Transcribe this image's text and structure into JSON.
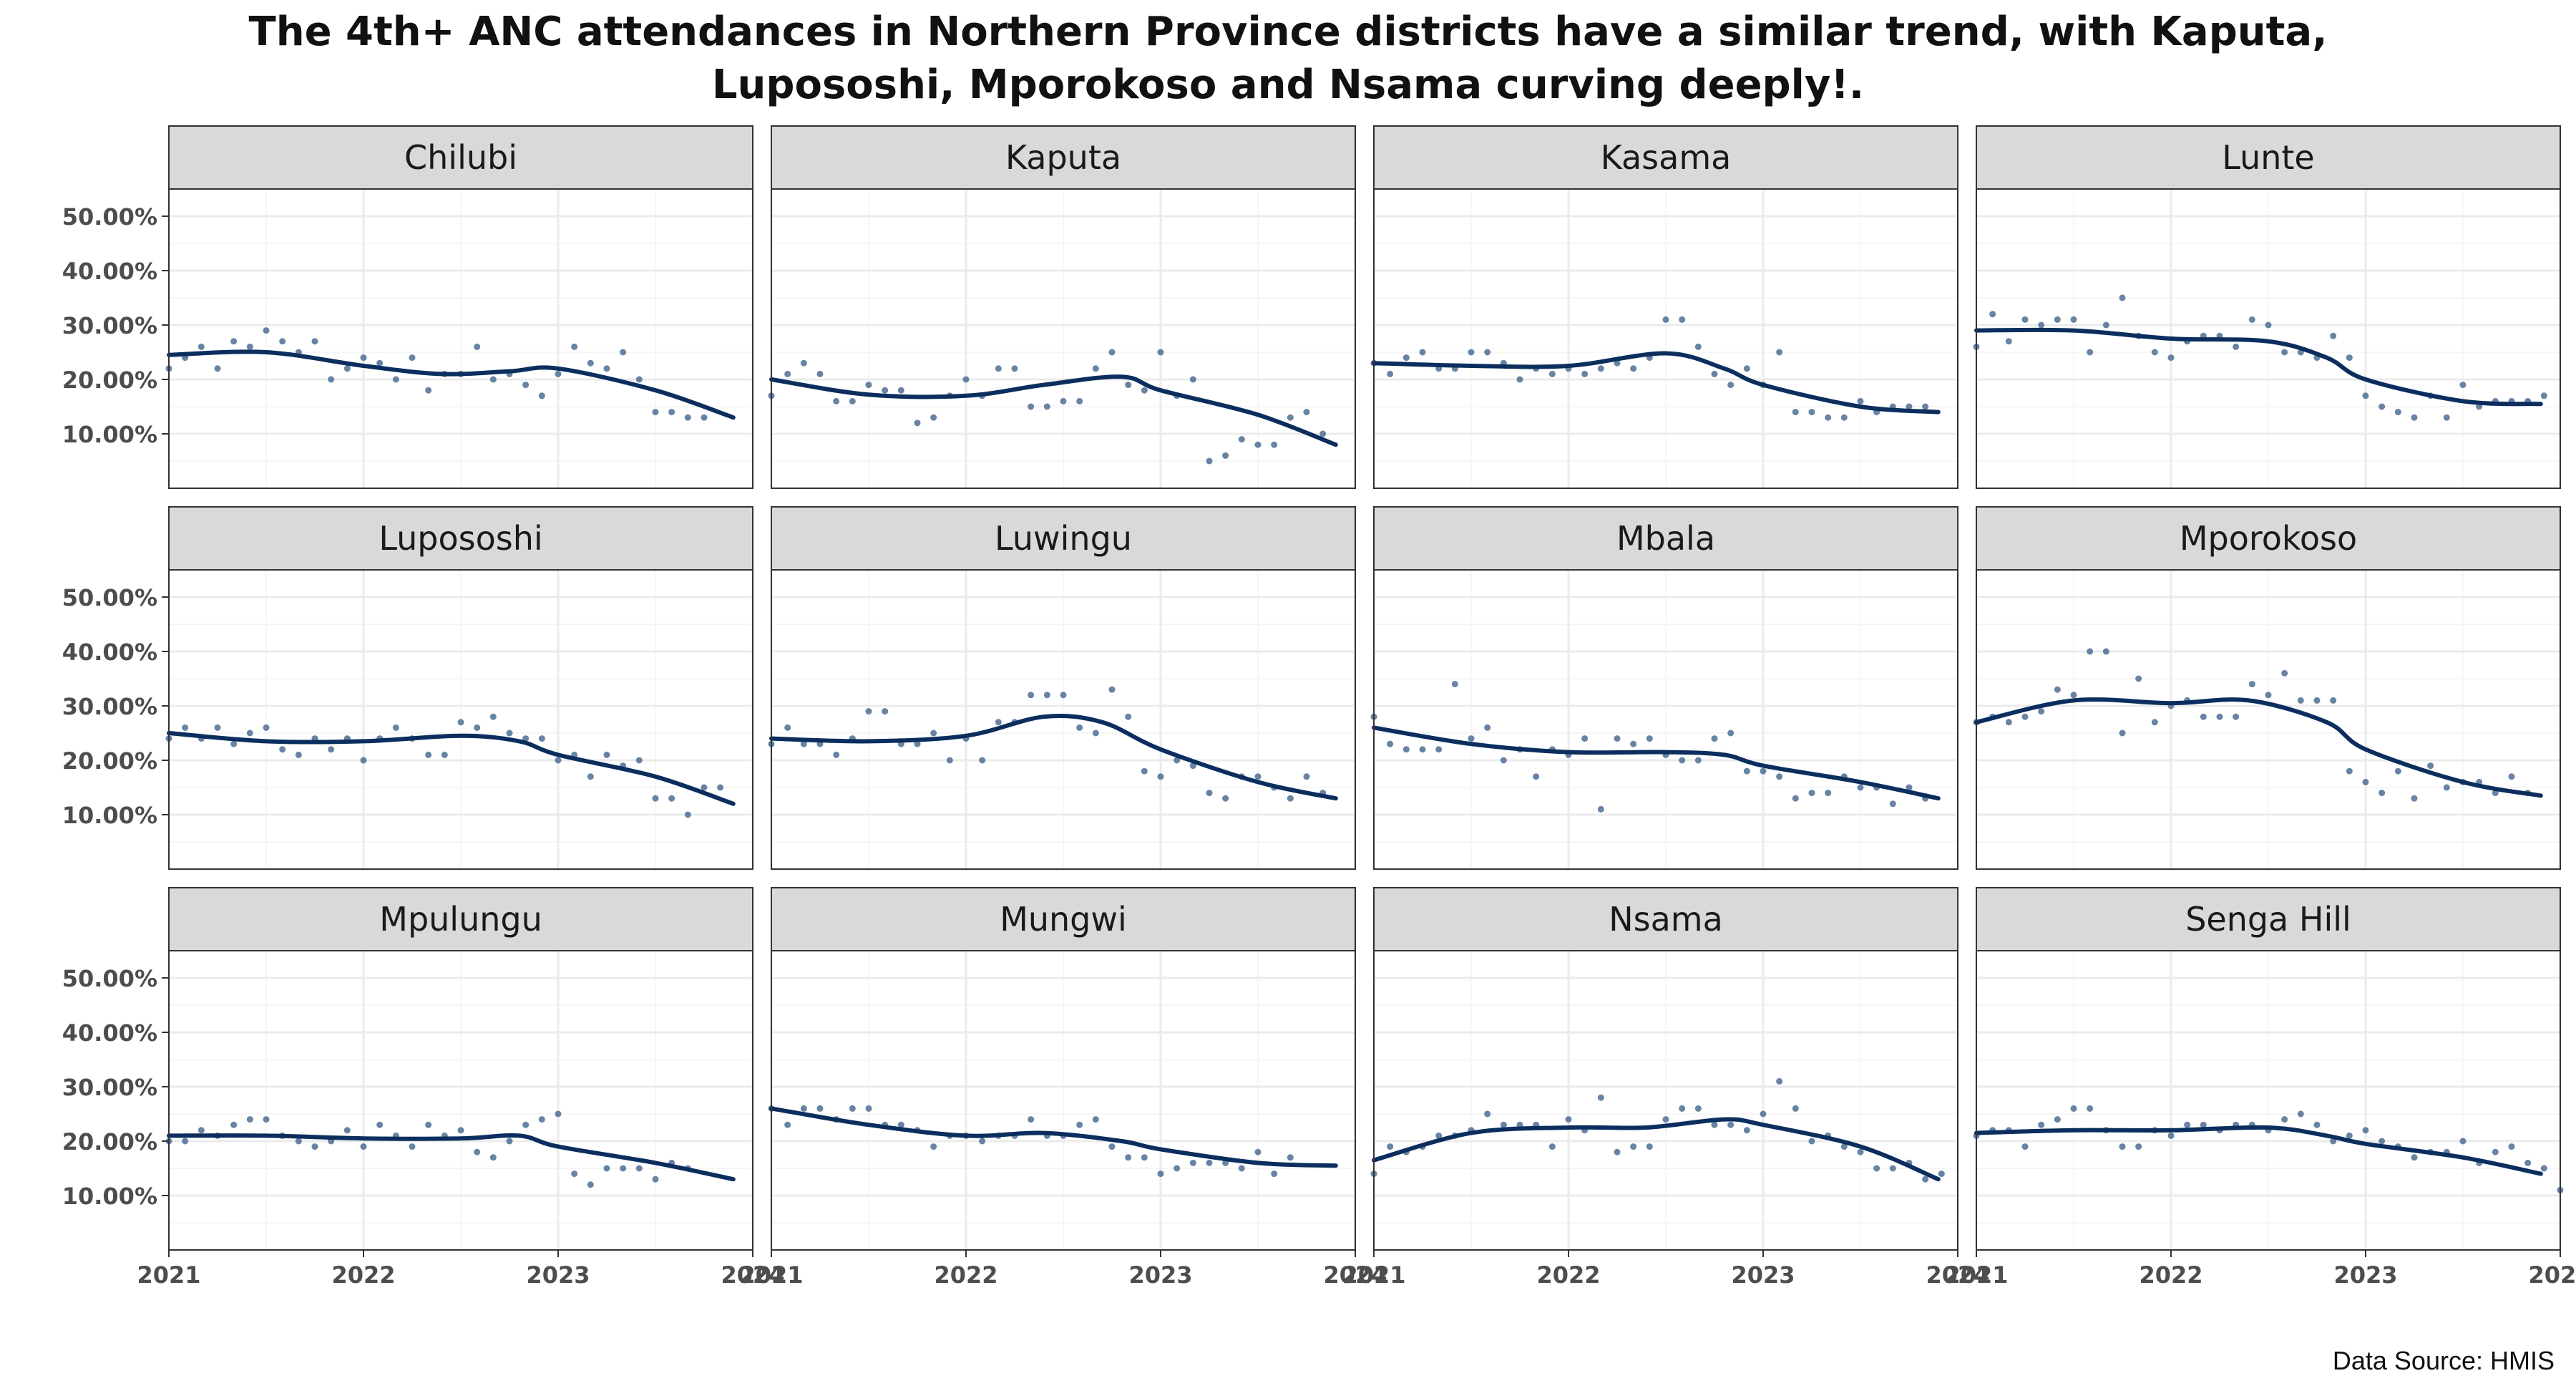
{
  "title_lines": [
    "The 4th+ ANC attendances in Northern Province districts have a similar trend, with Kaputa,",
    "Lupososhi, Mporokoso and Nsama curving deeply!."
  ],
  "caption": "Data Source: HMIS",
  "colors": {
    "line": "#0b2e5e",
    "point": "#4e6d94",
    "strip_bg": "#d9d9d9",
    "grid": "#ebebeb",
    "border": "#333333"
  },
  "chart_data": {
    "type": "scatter",
    "subtype": "faceted scatter with smoothed trend line",
    "title": "The 4th+ ANC attendances in Northern Province districts have a similar trend, with Kaputa, Lupososhi, Mporokoso and Nsama curving deeply!.",
    "xlabel": "",
    "ylabel": "",
    "xlim": [
      2021,
      2024
    ],
    "ylim": [
      0,
      55
    ],
    "x_ticks": [
      2021,
      2022,
      2023,
      2024
    ],
    "x_tick_labels": [
      "2021",
      "2022",
      "2023",
      "2024"
    ],
    "y_ticks": [
      10,
      20,
      30,
      40,
      50
    ],
    "y_tick_labels": [
      "10.00%",
      "20.00%",
      "30.00%",
      "40.00%",
      "50.00%"
    ],
    "grid": true,
    "x_step": 0.08333,
    "x_start": 2021,
    "facets": [
      {
        "name": "Chilubi",
        "points": [
          22,
          24,
          26,
          22,
          27,
          26,
          29,
          27,
          25,
          27,
          20,
          22,
          24,
          23,
          20,
          24,
          18,
          21,
          21,
          26,
          20,
          21,
          19,
          17,
          21,
          26,
          23,
          22,
          25,
          20,
          14,
          14,
          13,
          13
        ],
        "trend": [
          [
            2021,
            24.5
          ],
          [
            2021.5,
            25
          ],
          [
            2022,
            22.5
          ],
          [
            2022.4,
            21
          ],
          [
            2022.75,
            21.5
          ],
          [
            2023,
            22
          ],
          [
            2023.5,
            18
          ],
          [
            2023.9,
            13
          ]
        ]
      },
      {
        "name": "Kaputa",
        "points": [
          17,
          21,
          23,
          21,
          16,
          16,
          19,
          18,
          18,
          12,
          13,
          17,
          20,
          17,
          22,
          22,
          15,
          15,
          16,
          16,
          22,
          25,
          19,
          18,
          25,
          17,
          20,
          5,
          6,
          9,
          8,
          8,
          13,
          14,
          10
        ],
        "trend": [
          [
            2021,
            20
          ],
          [
            2021.5,
            17.2
          ],
          [
            2022,
            17
          ],
          [
            2022.4,
            19
          ],
          [
            2022.8,
            20.5
          ],
          [
            2023,
            18
          ],
          [
            2023.5,
            13.5
          ],
          [
            2023.9,
            8
          ]
        ]
      },
      {
        "name": "Kasama",
        "points": [
          23,
          21,
          24,
          25,
          22,
          22,
          25,
          25,
          23,
          20,
          22,
          21,
          22,
          21,
          22,
          23,
          22,
          24,
          31,
          31,
          26,
          21,
          19,
          22,
          19,
          25,
          14,
          14,
          13,
          13,
          16,
          14,
          15,
          15,
          15
        ],
        "trend": [
          [
            2021,
            23
          ],
          [
            2021.5,
            22.5
          ],
          [
            2022,
            22.5
          ],
          [
            2022.5,
            24.8
          ],
          [
            2022.8,
            22
          ],
          [
            2023,
            19
          ],
          [
            2023.5,
            15
          ],
          [
            2023.9,
            14
          ]
        ]
      },
      {
        "name": "Lunte",
        "points": [
          26,
          32,
          27,
          31,
          30,
          31,
          31,
          25,
          30,
          35,
          28,
          25,
          24,
          27,
          28,
          28,
          26,
          31,
          30,
          25,
          25,
          24,
          28,
          24,
          17,
          15,
          14,
          13,
          17,
          13,
          19,
          15,
          16,
          16,
          16,
          17
        ],
        "trend": [
          [
            2021,
            29
          ],
          [
            2021.5,
            29
          ],
          [
            2022,
            27.5
          ],
          [
            2022.5,
            27
          ],
          [
            2022.8,
            24
          ],
          [
            2023,
            20
          ],
          [
            2023.5,
            16
          ],
          [
            2023.9,
            15.5
          ]
        ]
      },
      {
        "name": "Lupososhi",
        "points": [
          24,
          26,
          24,
          26,
          23,
          25,
          26,
          22,
          21,
          24,
          22,
          24,
          20,
          24,
          26,
          24,
          21,
          21,
          27,
          26,
          28,
          25,
          24,
          24,
          20,
          21,
          17,
          21,
          19,
          20,
          13,
          13,
          10,
          15,
          15
        ],
        "trend": [
          [
            2021,
            25
          ],
          [
            2021.5,
            23.5
          ],
          [
            2022,
            23.5
          ],
          [
            2022.5,
            24.5
          ],
          [
            2022.8,
            23.5
          ],
          [
            2023,
            21
          ],
          [
            2023.5,
            17
          ],
          [
            2023.9,
            12
          ]
        ]
      },
      {
        "name": "Luwingu",
        "points": [
          23,
          26,
          23,
          23,
          21,
          24,
          29,
          29,
          23,
          23,
          25,
          20,
          24,
          20,
          27,
          27,
          32,
          32,
          32,
          26,
          25,
          33,
          28,
          18,
          17,
          20,
          19,
          14,
          13,
          17,
          17,
          15,
          13,
          17,
          14
        ],
        "trend": [
          [
            2021,
            24
          ],
          [
            2021.5,
            23.5
          ],
          [
            2022,
            24.5
          ],
          [
            2022.4,
            28
          ],
          [
            2022.7,
            27
          ],
          [
            2023,
            22
          ],
          [
            2023.5,
            16
          ],
          [
            2023.9,
            13
          ]
        ]
      },
      {
        "name": "Mbala",
        "points": [
          28,
          23,
          22,
          22,
          22,
          34,
          24,
          26,
          20,
          22,
          17,
          22,
          21,
          24,
          11,
          24,
          23,
          24,
          21,
          20,
          20,
          24,
          25,
          18,
          18,
          17,
          13,
          14,
          14,
          17,
          15,
          15,
          12,
          15,
          13
        ],
        "trend": [
          [
            2021,
            26
          ],
          [
            2021.5,
            23
          ],
          [
            2022,
            21.5
          ],
          [
            2022.5,
            21.5
          ],
          [
            2022.8,
            21
          ],
          [
            2023,
            19
          ],
          [
            2023.5,
            16
          ],
          [
            2023.9,
            13
          ]
        ]
      },
      {
        "name": "Mporokoso",
        "points": [
          27,
          28,
          27,
          28,
          29,
          33,
          32,
          40,
          40,
          25,
          35,
          27,
          30,
          31,
          28,
          28,
          28,
          34,
          32,
          36,
          31,
          31,
          31,
          18,
          16,
          14,
          18,
          13,
          19,
          15,
          16,
          16,
          14,
          17,
          14
        ],
        "trend": [
          [
            2021,
            27
          ],
          [
            2021.5,
            31
          ],
          [
            2022,
            30.5
          ],
          [
            2022.4,
            31
          ],
          [
            2022.8,
            27
          ],
          [
            2023,
            22
          ],
          [
            2023.5,
            16
          ],
          [
            2023.9,
            13.5
          ]
        ]
      },
      {
        "name": "Mpulungu",
        "points": [
          20,
          20,
          22,
          21,
          23,
          24,
          24,
          21,
          20,
          19,
          20,
          22,
          19,
          23,
          21,
          19,
          23,
          21,
          22,
          18,
          17,
          20,
          23,
          24,
          25,
          14,
          12,
          15,
          15,
          15,
          13,
          16,
          15
        ],
        "trend": [
          [
            2021,
            21
          ],
          [
            2021.5,
            21
          ],
          [
            2022,
            20.5
          ],
          [
            2022.5,
            20.5
          ],
          [
            2022.8,
            21
          ],
          [
            2023,
            19
          ],
          [
            2023.5,
            16
          ],
          [
            2023.9,
            13
          ]
        ]
      },
      {
        "name": "Mungwi",
        "points": [
          26,
          23,
          26,
          26,
          24,
          26,
          26,
          23,
          23,
          22,
          19,
          21,
          21,
          20,
          21,
          21,
          24,
          21,
          21,
          23,
          24,
          19,
          17,
          17,
          14,
          15,
          16,
          16,
          16,
          15,
          18,
          14,
          17
        ],
        "trend": [
          [
            2021,
            26
          ],
          [
            2021.5,
            23
          ],
          [
            2022,
            21
          ],
          [
            2022.4,
            21.5
          ],
          [
            2022.8,
            20
          ],
          [
            2023,
            18.5
          ],
          [
            2023.5,
            16
          ],
          [
            2023.9,
            15.5
          ]
        ]
      },
      {
        "name": "Nsama",
        "points": [
          14,
          19,
          18,
          19,
          21,
          21,
          22,
          25,
          23,
          23,
          23,
          19,
          24,
          22,
          28,
          18,
          19,
          19,
          24,
          26,
          26,
          23,
          23,
          22,
          25,
          31,
          26,
          20,
          21,
          19,
          18,
          15,
          15,
          16,
          13,
          14
        ],
        "trend": [
          [
            2021,
            16.5
          ],
          [
            2021.5,
            21.5
          ],
          [
            2022,
            22.5
          ],
          [
            2022.4,
            22.5
          ],
          [
            2022.8,
            24
          ],
          [
            2023,
            23
          ],
          [
            2023.5,
            19
          ],
          [
            2023.9,
            13
          ]
        ]
      },
      {
        "name": "Senga Hill",
        "points": [
          21,
          22,
          22,
          19,
          23,
          24,
          26,
          26,
          22,
          19,
          19,
          22,
          21,
          23,
          23,
          22,
          23,
          23,
          22,
          24,
          25,
          23,
          20,
          21,
          22,
          20,
          19,
          17,
          18,
          18,
          20,
          16,
          18,
          19,
          16,
          15,
          11
        ],
        "trend": [
          [
            2021,
            21.5
          ],
          [
            2021.5,
            22
          ],
          [
            2022,
            22
          ],
          [
            2022.5,
            22.5
          ],
          [
            2022.8,
            21
          ],
          [
            2023,
            19.5
          ],
          [
            2023.5,
            17
          ],
          [
            2023.9,
            14
          ]
        ]
      }
    ]
  }
}
